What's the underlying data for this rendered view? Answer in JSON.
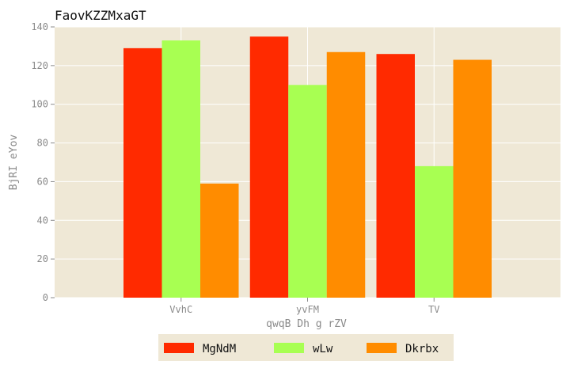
{
  "chart_data": {
    "type": "bar",
    "title": "FaovKZZMxaGT",
    "xlabel": "qwqB Dh g rZV",
    "ylabel": "BjRI eYov",
    "categories": [
      "VvhC",
      "yvFM",
      "TV"
    ],
    "series": [
      {
        "name": "MgNdM",
        "values": [
          129,
          135,
          126
        ],
        "color": "#ff2a00"
      },
      {
        "name": "wLw",
        "values": [
          133,
          110,
          68
        ],
        "color": "#a8ff52"
      },
      {
        "name": "Dkrbx",
        "values": [
          59,
          127,
          123
        ],
        "color": "#ff8c00"
      }
    ],
    "ylim": [
      0,
      140
    ],
    "yticks": [
      0,
      20,
      40,
      60,
      80,
      100,
      120,
      140
    ],
    "grid": true,
    "legend_position": "bottom-center",
    "plot_background": "#efe8d6",
    "grid_color": "#ffffff"
  }
}
